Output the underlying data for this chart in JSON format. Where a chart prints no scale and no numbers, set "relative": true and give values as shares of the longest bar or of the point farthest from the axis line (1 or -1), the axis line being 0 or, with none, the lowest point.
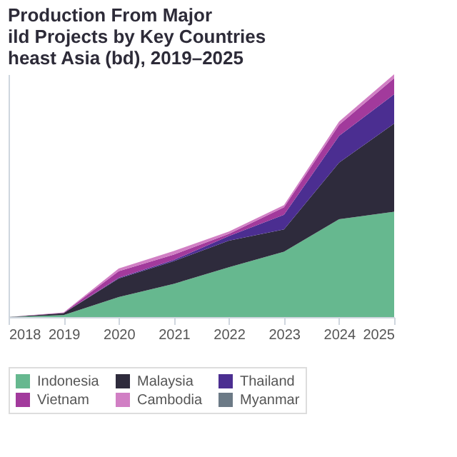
{
  "chart_data": {
    "type": "area",
    "title": [
      "Production From Major",
      "ild Projects by Key Countries",
      "heast Asia (bd), 2019–2025"
    ],
    "x": [
      2018,
      2019,
      2020,
      2021,
      2022,
      2023,
      2024,
      2025
    ],
    "xlim": [
      2018,
      2025
    ],
    "xticks": [
      2018,
      2019,
      2020,
      2021,
      2022,
      2023,
      2024,
      2025
    ],
    "relative": true,
    "stacked": true,
    "grid": false,
    "legend": "bottom",
    "series": [
      {
        "name": "Indonesia",
        "color": "#66b88f",
        "values": [
          0,
          0.008,
          0.082,
          0.137,
          0.205,
          0.269,
          0.403,
          0.434
        ]
      },
      {
        "name": "Malaysia",
        "color": "#2e2b3c",
        "values": [
          0,
          0.008,
          0.077,
          0.093,
          0.11,
          0.092,
          0.233,
          0.363
        ]
      },
      {
        "name": "Thailand",
        "color": "#4b2e91",
        "values": [
          0,
          0,
          0.003,
          0.005,
          0.019,
          0.06,
          0.11,
          0.121
        ]
      },
      {
        "name": "Vietnam",
        "color": "#a23a9c",
        "values": [
          0,
          0.002,
          0.027,
          0.022,
          0.009,
          0.031,
          0.046,
          0.066
        ]
      },
      {
        "name": "Cambodia",
        "color": "#d17fc4",
        "values": [
          0,
          0.001,
          0.011,
          0.015,
          0.009,
          0.009,
          0.013,
          0.016
        ]
      },
      {
        "name": "Myanmar",
        "color": "#6c7a86",
        "values": [
          null,
          null,
          null,
          null,
          null,
          null,
          null,
          null
        ]
      }
    ]
  }
}
